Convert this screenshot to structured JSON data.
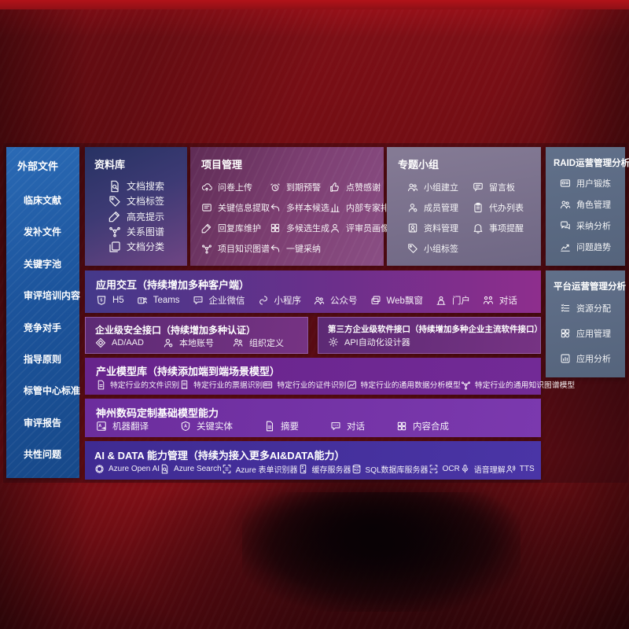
{
  "colors": {
    "background_red": "#7c1019",
    "sidebar_blue": "#1c549c",
    "panel_slate": "#5b697f",
    "band_magenta": "#8e2e8d",
    "band_purple": "#722a96",
    "band_indigo": "#45309b"
  },
  "sidebar": {
    "title": "外部文件",
    "items": [
      "临床文献",
      "发补文件",
      "关键字池",
      "审评培训内容",
      "竞争对手",
      "指导原则",
      "标管中心标准",
      "审评报告",
      "共性问题"
    ]
  },
  "panels": {
    "library": {
      "title": "资料库",
      "items": [
        {
          "label": "文档搜索",
          "icon": "doc-search"
        },
        {
          "label": "文档标签",
          "icon": "tag"
        },
        {
          "label": "高亮提示",
          "icon": "pencil"
        },
        {
          "label": "关系图谱",
          "icon": "graph"
        },
        {
          "label": "文档分类",
          "icon": "docs"
        }
      ]
    },
    "project": {
      "title": "项目管理",
      "items": [
        {
          "label": "问卷上传",
          "icon": "cloud-up"
        },
        {
          "label": "到期预警",
          "icon": "alarm"
        },
        {
          "label": "点赞感谢",
          "icon": "thumb"
        },
        {
          "label": "关键信息提取",
          "icon": "extract"
        },
        {
          "label": "多样本候选",
          "icon": "reply"
        },
        {
          "label": "内部专家排名",
          "icon": "rank"
        },
        {
          "label": "回复库维护",
          "icon": "pencil"
        },
        {
          "label": "多候选生成",
          "icon": "grid"
        },
        {
          "label": "评审员画像",
          "icon": "person"
        },
        {
          "label": "项目知识图谱",
          "icon": "graph"
        },
        {
          "label": "一键采纳",
          "icon": "reply"
        }
      ]
    },
    "group": {
      "title": "专题小组",
      "items": [
        {
          "label": "小组建立",
          "icon": "people"
        },
        {
          "label": "留言板",
          "icon": "bbs"
        },
        {
          "label": "成员管理",
          "icon": "member"
        },
        {
          "label": "代办列表",
          "icon": "clipboard"
        },
        {
          "label": "资料管理",
          "icon": "album"
        },
        {
          "label": "事项提醒",
          "icon": "bell"
        },
        {
          "label": "小组标签",
          "icon": "tag"
        }
      ]
    },
    "raid": {
      "title": "RAID运营管理分析",
      "items": [
        {
          "label": "用户锻炼",
          "icon": "id-card"
        },
        {
          "label": "角色管理",
          "icon": "people"
        },
        {
          "label": "采纳分析",
          "icon": "chat-qa"
        },
        {
          "label": "问题趋势",
          "icon": "trend"
        }
      ]
    },
    "platform": {
      "title": "平台运营管理分析",
      "items": [
        {
          "label": "资源分配",
          "icon": "list"
        },
        {
          "label": "应用管理",
          "icon": "app-grid"
        },
        {
          "label": "应用分析",
          "icon": "app-chart"
        }
      ]
    }
  },
  "bands": {
    "interaction": {
      "title": "应用交互（持续增加多种客户端）",
      "items": [
        {
          "label": "H5",
          "icon": "h5"
        },
        {
          "label": "Teams",
          "icon": "teams"
        },
        {
          "label": "企业微信",
          "icon": "chat"
        },
        {
          "label": "小程序",
          "icon": "miniapp"
        },
        {
          "label": "公众号",
          "icon": "people"
        },
        {
          "label": "Web飘窗",
          "icon": "window"
        },
        {
          "label": "门户",
          "icon": "portal"
        },
        {
          "label": "对话",
          "icon": "dialog"
        }
      ]
    },
    "security": {
      "title": "企业级安全接口（持续增加多种认证）",
      "items": [
        {
          "label": "AD/AAD",
          "icon": "ad"
        },
        {
          "label": "本地账号",
          "icon": "member"
        },
        {
          "label": "组织定义",
          "icon": "org"
        }
      ]
    },
    "third_party": {
      "title": "第三方企业级软件接口（持续增加多种企业主流软件接口）",
      "items": [
        {
          "label": "API自动化设计器",
          "icon": "gear"
        }
      ]
    },
    "industry": {
      "title": "产业模型库（持续添加端到端场景模型）",
      "items": [
        {
          "label": "特定行业的文件识别",
          "icon": "doc"
        },
        {
          "label": "特定行业的票据识别",
          "icon": "receipt"
        },
        {
          "label": "特定行业的证件识别",
          "icon": "id-card"
        },
        {
          "label": "特定行业的通用数据分析模型",
          "icon": "data-image"
        },
        {
          "label": "特定行业的通用知识图谱模型",
          "icon": "graph"
        }
      ]
    },
    "base_models": {
      "title": "神州数码定制基础模型能力",
      "items": [
        {
          "label": "机器翻译",
          "icon": "translate"
        },
        {
          "label": "关键实体",
          "icon": "shield-a"
        },
        {
          "label": "摘要",
          "icon": "doc"
        },
        {
          "label": "对话",
          "icon": "chat"
        },
        {
          "label": "内容合成",
          "icon": "grid"
        }
      ]
    },
    "ai_data": {
      "title": "AI & DATA 能力管理（持续为接入更多AI&DATA能力）",
      "items": [
        {
          "label": "Azure Open AI",
          "icon": "openai"
        },
        {
          "label": "Azure Search",
          "icon": "doc-search"
        },
        {
          "label": "Azure 表单识别器",
          "icon": "form"
        },
        {
          "label": "缓存服务器",
          "icon": "server"
        },
        {
          "label": "SQL数据库服务器",
          "icon": "sql"
        },
        {
          "label": "OCR",
          "icon": "ocr"
        },
        {
          "label": "语音理解",
          "icon": "speech"
        },
        {
          "label": "TTS",
          "icon": "tts"
        }
      ]
    }
  }
}
